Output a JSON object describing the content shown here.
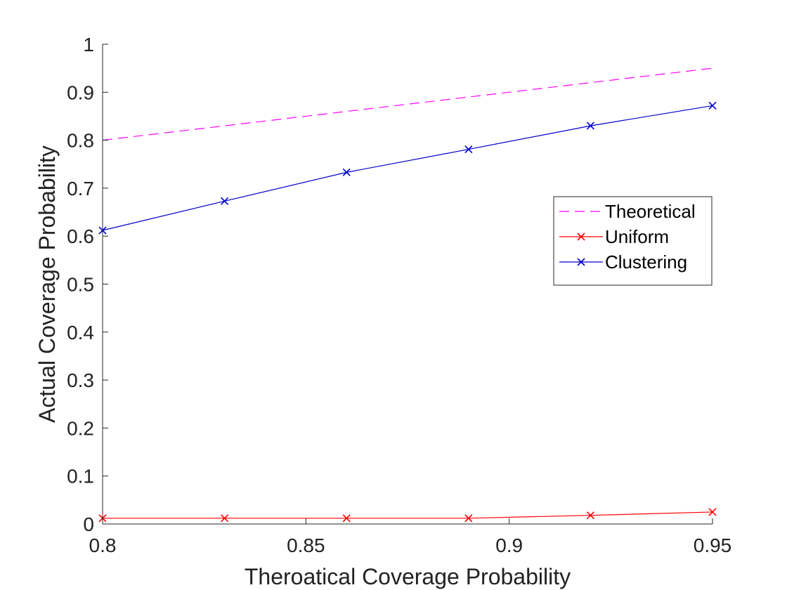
{
  "chart_data": {
    "type": "line",
    "title": "",
    "xlabel": "Theroatical Coverage Probability",
    "ylabel": "Actual Coverage Probability",
    "xlim": [
      0.8,
      0.95
    ],
    "ylim": [
      0,
      1
    ],
    "xticks": [
      0.8,
      0.85,
      0.9,
      0.95
    ],
    "xtick_labels": [
      "0.8",
      "0.85",
      "0.9",
      "0.95"
    ],
    "yticks": [
      0,
      0.1,
      0.2,
      0.3,
      0.4,
      0.5,
      0.6,
      0.7,
      0.8,
      0.9,
      1
    ],
    "ytick_labels": [
      "0",
      "0.1",
      "0.2",
      "0.3",
      "0.4",
      "0.5",
      "0.6",
      "0.7",
      "0.8",
      "0.9",
      "1"
    ],
    "grid": false,
    "legend_position": "center-right",
    "series": [
      {
        "name": "Theoretical",
        "color": "#ff00ff",
        "line_style": "dashed",
        "marker": "none",
        "x": [
          0.8,
          0.95
        ],
        "values": [
          0.8,
          0.95
        ]
      },
      {
        "name": "Uniform",
        "color": "#ff0000",
        "line_style": "solid",
        "marker": "x",
        "x": [
          0.8,
          0.83,
          0.86,
          0.89,
          0.92,
          0.95
        ],
        "values": [
          0.012,
          0.012,
          0.012,
          0.012,
          0.018,
          0.025
        ]
      },
      {
        "name": "Clustering",
        "color": "#0000cc",
        "line_style": "solid",
        "marker": "x",
        "x": [
          0.8,
          0.83,
          0.86,
          0.89,
          0.92,
          0.95
        ],
        "values": [
          0.612,
          0.673,
          0.733,
          0.781,
          0.83,
          0.872
        ]
      }
    ]
  }
}
